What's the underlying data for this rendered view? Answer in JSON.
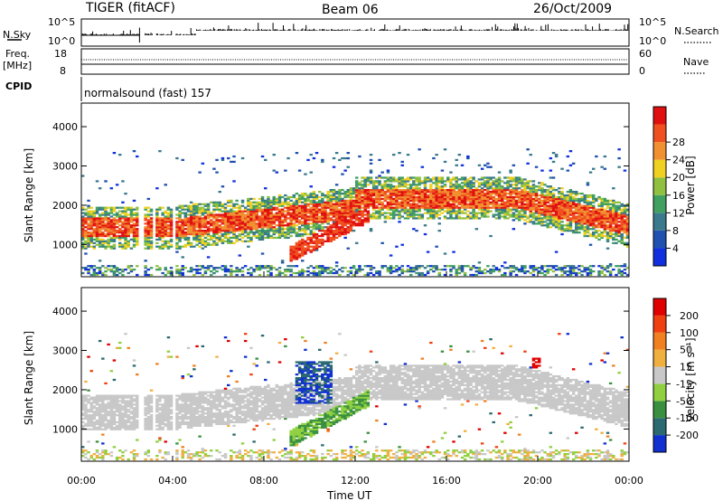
{
  "header": {
    "station": "TIGER (fitACF)",
    "beam": "Beam 06",
    "date": "26/Oct/2009"
  },
  "strips": {
    "nsky_label": "N.Sky",
    "nsky_ticks": [
      "10^5",
      "10^0"
    ],
    "nsearch_label": "N.Search",
    "nsearch_ticks": [
      "10^5",
      "10^0"
    ],
    "freq_label": [
      "Freq.",
      "[MHz]"
    ],
    "freq_ticks": [
      "18",
      "8"
    ],
    "nave_label": "Nave",
    "nave_ticks": [
      "60",
      "0"
    ],
    "cpid_label": "CPID",
    "cpid_text": "normalsound (fast) 157"
  },
  "chart_data": [
    {
      "type": "heatmap",
      "panel": "power",
      "title": "",
      "xlabel": "Time UT",
      "ylabel": "Slant Range [km]",
      "xlim": [
        0,
        24
      ],
      "ylim": [
        180,
        4600
      ],
      "x_ticks": [
        "00:00",
        "04:00",
        "08:00",
        "12:00",
        "16:00",
        "20:00",
        "00:00"
      ],
      "y_ticks": [
        1000,
        2000,
        3000,
        4000
      ],
      "colorbar": {
        "label": "Power [dB]",
        "ticks": [
          4,
          8,
          12,
          16,
          20,
          24,
          28
        ],
        "colors": [
          "#1030e0",
          "#2050b0",
          "#3a7a8c",
          "#40a060",
          "#90c040",
          "#f0d020",
          "#f09030",
          "#f05020",
          "#e01010"
        ]
      },
      "features": [
        {
          "name": "main band",
          "time": [
            0,
            24
          ],
          "range_km": [
            900,
            2400
          ],
          "peak_power_db": 28
        },
        {
          "name": "daytime sporadic echoes",
          "time": [
            4,
            24
          ],
          "range_km": [
            2800,
            3300
          ]
        },
        {
          "name": "ground scatter arc",
          "time": [
            9,
            12.5
          ],
          "range_km": [
            700,
            2700
          ],
          "power_db": 28
        }
      ],
      "data_gaps": [
        [
          2.55,
          2.75
        ],
        [
          3.1,
          3.25
        ],
        [
          3.95,
          4.1
        ]
      ]
    },
    {
      "type": "heatmap",
      "panel": "velocity",
      "title": "",
      "xlabel": "Time UT",
      "ylabel": "Slant Range [km]",
      "xlim": [
        0,
        24
      ],
      "ylim": [
        180,
        4600
      ],
      "x_ticks": [
        "00:00",
        "04:00",
        "08:00",
        "12:00",
        "16:00",
        "20:00",
        "00:00"
      ],
      "y_ticks": [
        1000,
        2000,
        3000,
        4000
      ],
      "colorbar": {
        "label": "Velocity [m s⁻¹]",
        "ticks": [
          200,
          100,
          50,
          15,
          -15,
          -50,
          -100,
          -200
        ],
        "colors": [
          "#1030d0",
          "#2a6a70",
          "#3a9040",
          "#90d040",
          "#c8c8c8",
          "#f0b040",
          "#f08020",
          "#f04010",
          "#e00000"
        ]
      },
      "features": [
        {
          "name": "ground scatter (grey)",
          "time": [
            0,
            24
          ],
          "range_km": [
            900,
            2300
          ],
          "velocity": [
            -15,
            15
          ]
        },
        {
          "name": "positive velocity patch",
          "time": [
            9.3,
            11
          ],
          "range_km": [
            1600,
            2700
          ],
          "velocity": 200
        },
        {
          "name": "green arc",
          "time": [
            9,
            12.5
          ],
          "range_km": [
            700,
            1900
          ],
          "velocity": 50
        },
        {
          "name": "negative velocity patch",
          "time": [
            19.7,
            20.1
          ],
          "range_km": [
            2500,
            2800
          ],
          "velocity": -200
        }
      ],
      "data_gaps": [
        [
          2.55,
          2.75
        ],
        [
          3.1,
          3.25
        ],
        [
          3.95,
          4.1
        ]
      ]
    }
  ]
}
